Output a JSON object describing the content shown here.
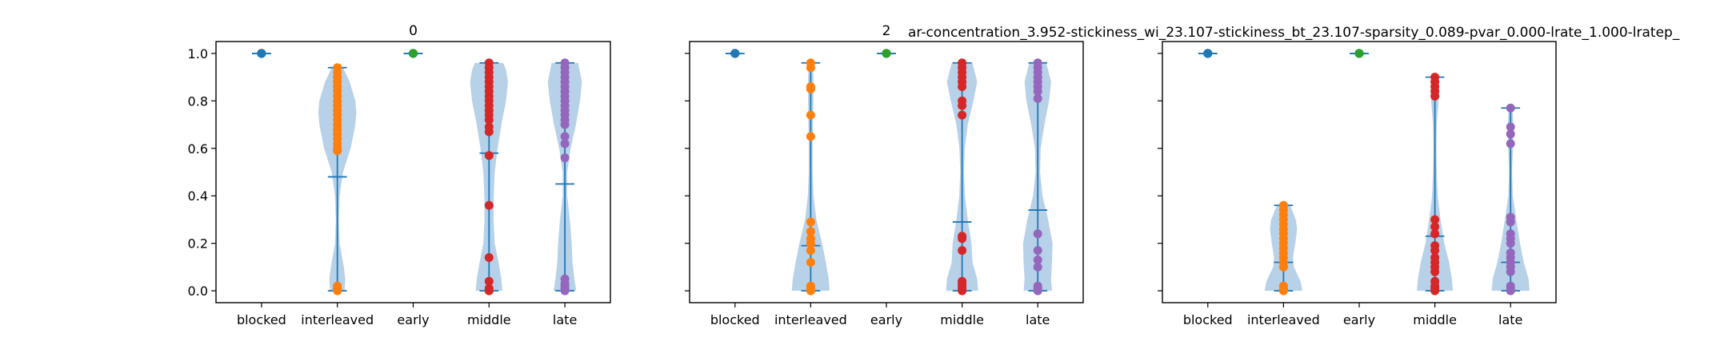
{
  "figure_title": "ar-concentration_3.952-stickiness_wi_23.107-stickiness_bt_23.107-sparsity_0.089-pvar_0.000-lrate_1.000-lratep_",
  "colors": {
    "violin_fill": "#b7d1e8",
    "line": "#1f77b4",
    "blocked": "#1f77b4",
    "interleaved": "#ff7f0e",
    "early": "#2ca02c",
    "middle": "#d62728",
    "late": "#9467bd"
  },
  "chart_data": [
    {
      "type": "violin",
      "title": "0",
      "categories": [
        "blocked",
        "interleaved",
        "early",
        "middle",
        "late"
      ],
      "ylim": [
        -0.05,
        1.05
      ],
      "yticks": [
        "0.0",
        "0.2",
        "0.4",
        "0.6",
        "0.8",
        "1.0"
      ],
      "show_ytick_labels": true,
      "series": [
        {
          "category": "blocked",
          "min": 1.0,
          "max": 1.0,
          "median": 1.0,
          "points": [
            1.0,
            1.0,
            1.0,
            1.0,
            1.0
          ],
          "density": []
        },
        {
          "category": "interleaved",
          "min": 0.0,
          "max": 0.94,
          "median": 0.48,
          "points": [
            0.0,
            0.01,
            0.02,
            0.59,
            0.6,
            0.62,
            0.64,
            0.66,
            0.68,
            0.7,
            0.72,
            0.74,
            0.76,
            0.78,
            0.8,
            0.82,
            0.84,
            0.86,
            0.88,
            0.9,
            0.92,
            0.94
          ],
          "density": [
            [
              0.0,
              0.38
            ],
            [
              0.05,
              0.42
            ],
            [
              0.1,
              0.34
            ],
            [
              0.2,
              0.12
            ],
            [
              0.3,
              0.08
            ],
            [
              0.4,
              0.12
            ],
            [
              0.5,
              0.3
            ],
            [
              0.6,
              0.7
            ],
            [
              0.7,
              0.95
            ],
            [
              0.75,
              1.0
            ],
            [
              0.8,
              0.95
            ],
            [
              0.88,
              0.65
            ],
            [
              0.94,
              0.3
            ]
          ]
        },
        {
          "category": "early",
          "min": 1.0,
          "max": 1.0,
          "median": 1.0,
          "points": [
            1.0,
            1.0,
            1.0,
            1.0,
            1.0
          ],
          "density": []
        },
        {
          "category": "middle",
          "min": 0.0,
          "max": 0.96,
          "median": 0.58,
          "points": [
            0.0,
            0.01,
            0.04,
            0.14,
            0.36,
            0.57,
            0.67,
            0.69,
            0.72,
            0.74,
            0.76,
            0.78,
            0.8,
            0.82,
            0.84,
            0.86,
            0.88,
            0.9,
            0.92,
            0.94,
            0.96
          ],
          "density": [
            [
              0.0,
              0.7
            ],
            [
              0.05,
              0.65
            ],
            [
              0.12,
              0.5
            ],
            [
              0.2,
              0.3
            ],
            [
              0.3,
              0.24
            ],
            [
              0.4,
              0.25
            ],
            [
              0.5,
              0.3
            ],
            [
              0.6,
              0.45
            ],
            [
              0.7,
              0.65
            ],
            [
              0.8,
              0.9
            ],
            [
              0.88,
              1.0
            ],
            [
              0.93,
              0.9
            ],
            [
              0.96,
              0.75
            ]
          ]
        },
        {
          "category": "late",
          "min": 0.0,
          "max": 0.96,
          "median": 0.45,
          "points": [
            0.0,
            0.01,
            0.02,
            0.03,
            0.05,
            0.56,
            0.62,
            0.65,
            0.7,
            0.72,
            0.74,
            0.76,
            0.78,
            0.8,
            0.82,
            0.84,
            0.86,
            0.88,
            0.9,
            0.92,
            0.94,
            0.96
          ],
          "density": [
            [
              0.0,
              0.6
            ],
            [
              0.05,
              0.5
            ],
            [
              0.12,
              0.4
            ],
            [
              0.2,
              0.36
            ],
            [
              0.3,
              0.26
            ],
            [
              0.4,
              0.12
            ],
            [
              0.5,
              0.12
            ],
            [
              0.6,
              0.3
            ],
            [
              0.7,
              0.58
            ],
            [
              0.8,
              0.8
            ],
            [
              0.88,
              0.9
            ],
            [
              0.96,
              0.7
            ]
          ]
        }
      ]
    },
    {
      "type": "violin",
      "title": "2",
      "categories": [
        "blocked",
        "interleaved",
        "early",
        "middle",
        "late"
      ],
      "ylim": [
        -0.05,
        1.05
      ],
      "yticks": [
        "0.0",
        "0.2",
        "0.4",
        "0.6",
        "0.8",
        "1.0"
      ],
      "show_ytick_labels": false,
      "series": [
        {
          "category": "blocked",
          "min": 1.0,
          "max": 1.0,
          "median": 1.0,
          "points": [
            1.0,
            1.0,
            1.0,
            1.0,
            1.0
          ],
          "density": []
        },
        {
          "category": "interleaved",
          "min": 0.0,
          "max": 0.96,
          "median": 0.19,
          "points": [
            0.0,
            0.01,
            0.02,
            0.12,
            0.17,
            0.2,
            0.22,
            0.25,
            0.29,
            0.65,
            0.74,
            0.85,
            0.86,
            0.94,
            0.96
          ],
          "density": [
            [
              0.0,
              1.0
            ],
            [
              0.05,
              0.95
            ],
            [
              0.12,
              0.8
            ],
            [
              0.2,
              0.6
            ],
            [
              0.3,
              0.3
            ],
            [
              0.4,
              0.15
            ],
            [
              0.5,
              0.1
            ],
            [
              0.6,
              0.1
            ],
            [
              0.7,
              0.12
            ],
            [
              0.8,
              0.14
            ],
            [
              0.9,
              0.14
            ],
            [
              0.96,
              0.1
            ]
          ]
        },
        {
          "category": "early",
          "min": 1.0,
          "max": 1.0,
          "median": 1.0,
          "points": [
            1.0,
            1.0,
            1.0,
            1.0,
            1.0
          ],
          "density": []
        },
        {
          "category": "middle",
          "min": 0.0,
          "max": 0.96,
          "median": 0.29,
          "points": [
            0.0,
            0.01,
            0.02,
            0.03,
            0.04,
            0.17,
            0.22,
            0.23,
            0.74,
            0.78,
            0.8,
            0.86,
            0.88,
            0.9,
            0.92,
            0.94,
            0.96
          ],
          "density": [
            [
              0.0,
              0.85
            ],
            [
              0.05,
              0.8
            ],
            [
              0.12,
              0.55
            ],
            [
              0.2,
              0.5
            ],
            [
              0.3,
              0.3
            ],
            [
              0.4,
              0.15
            ],
            [
              0.5,
              0.1
            ],
            [
              0.6,
              0.14
            ],
            [
              0.7,
              0.3
            ],
            [
              0.8,
              0.6
            ],
            [
              0.88,
              0.8
            ],
            [
              0.96,
              0.55
            ]
          ]
        },
        {
          "category": "late",
          "min": 0.0,
          "max": 0.96,
          "median": 0.34,
          "points": [
            0.0,
            0.01,
            0.02,
            0.1,
            0.13,
            0.17,
            0.24,
            0.81,
            0.84,
            0.86,
            0.88,
            0.9,
            0.92,
            0.94,
            0.96
          ],
          "density": [
            [
              0.0,
              0.75
            ],
            [
              0.05,
              0.7
            ],
            [
              0.12,
              0.75
            ],
            [
              0.2,
              0.78
            ],
            [
              0.3,
              0.55
            ],
            [
              0.4,
              0.25
            ],
            [
              0.5,
              0.12
            ],
            [
              0.6,
              0.15
            ],
            [
              0.7,
              0.35
            ],
            [
              0.8,
              0.6
            ],
            [
              0.88,
              0.7
            ],
            [
              0.96,
              0.45
            ]
          ]
        }
      ]
    },
    {
      "type": "violin",
      "title": "",
      "categories": [
        "blocked",
        "interleaved",
        "early",
        "middle",
        "late"
      ],
      "ylim": [
        -0.05,
        1.05
      ],
      "yticks": [
        "0.0",
        "0.2",
        "0.4",
        "0.6",
        "0.8",
        "1.0"
      ],
      "show_ytick_labels": false,
      "series": [
        {
          "category": "blocked",
          "min": 1.0,
          "max": 1.0,
          "median": 1.0,
          "points": [
            1.0,
            1.0,
            1.0,
            1.0,
            1.0
          ],
          "density": []
        },
        {
          "category": "interleaved",
          "min": 0.0,
          "max": 0.36,
          "median": 0.12,
          "points": [
            0.0,
            0.01,
            0.02,
            0.1,
            0.12,
            0.14,
            0.16,
            0.18,
            0.2,
            0.22,
            0.24,
            0.26,
            0.28,
            0.3,
            0.32,
            0.34,
            0.36
          ],
          "density": [
            [
              0.0,
              1.0
            ],
            [
              0.04,
              0.9
            ],
            [
              0.1,
              0.55
            ],
            [
              0.14,
              0.5
            ],
            [
              0.2,
              0.62
            ],
            [
              0.26,
              0.72
            ],
            [
              0.3,
              0.65
            ],
            [
              0.36,
              0.35
            ]
          ]
        },
        {
          "category": "early",
          "min": 1.0,
          "max": 1.0,
          "median": 1.0,
          "points": [
            1.0,
            1.0,
            1.0,
            1.0,
            1.0
          ],
          "density": []
        },
        {
          "category": "middle",
          "min": 0.0,
          "max": 0.9,
          "median": 0.23,
          "points": [
            0.0,
            0.01,
            0.02,
            0.04,
            0.08,
            0.1,
            0.12,
            0.14,
            0.17,
            0.19,
            0.24,
            0.27,
            0.3,
            0.82,
            0.84,
            0.86,
            0.88,
            0.9
          ],
          "density": [
            [
              0.0,
              0.95
            ],
            [
              0.05,
              0.9
            ],
            [
              0.12,
              0.75
            ],
            [
              0.2,
              0.5
            ],
            [
              0.3,
              0.3
            ],
            [
              0.4,
              0.15
            ],
            [
              0.5,
              0.1
            ],
            [
              0.6,
              0.08
            ],
            [
              0.7,
              0.1
            ],
            [
              0.8,
              0.2
            ],
            [
              0.86,
              0.22
            ],
            [
              0.9,
              0.15
            ]
          ]
        },
        {
          "category": "late",
          "min": 0.0,
          "max": 0.77,
          "median": 0.12,
          "points": [
            0.0,
            0.01,
            0.02,
            0.08,
            0.1,
            0.12,
            0.14,
            0.16,
            0.2,
            0.22,
            0.24,
            0.29,
            0.31,
            0.62,
            0.66,
            0.69,
            0.77
          ],
          "density": [
            [
              0.0,
              1.0
            ],
            [
              0.05,
              0.95
            ],
            [
              0.12,
              0.7
            ],
            [
              0.2,
              0.5
            ],
            [
              0.3,
              0.3
            ],
            [
              0.4,
              0.12
            ],
            [
              0.5,
              0.08
            ],
            [
              0.6,
              0.12
            ],
            [
              0.7,
              0.15
            ],
            [
              0.77,
              0.1
            ]
          ]
        }
      ]
    }
  ]
}
